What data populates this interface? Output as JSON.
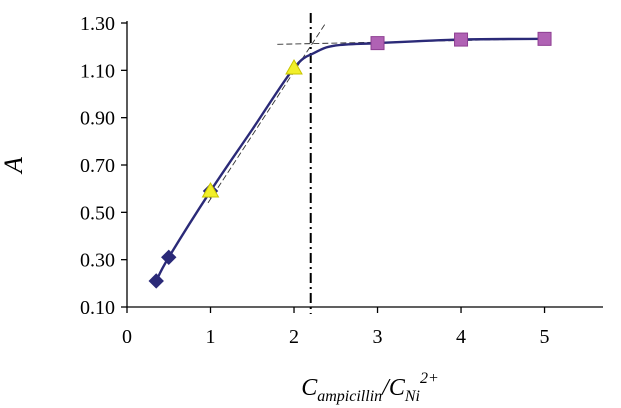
{
  "chart_data": {
    "type": "scatter",
    "title": "",
    "ylabel": "A",
    "xlabel": {
      "main": "C",
      "sub1": "ampicillin",
      "slash": "/",
      "main2": "C",
      "sub2": "Ni",
      "sup2": "2+"
    },
    "xlim": [
      0,
      5.7
    ],
    "ylim": [
      0.1,
      1.3
    ],
    "x_ticks": [
      0,
      1,
      2,
      3,
      4,
      5
    ],
    "x_tick_labels": [
      "0",
      "1",
      "2",
      "3",
      "4",
      "5"
    ],
    "y_ticks": [
      0.1,
      0.3,
      0.5,
      0.7,
      0.9,
      1.1,
      1.3
    ],
    "y_tick_labels": [
      "0.10",
      "0.30",
      "0.50",
      "0.70",
      "0.90",
      "1.10",
      "1.30"
    ],
    "grid": false,
    "series": [
      {
        "marker": "diamond",
        "color": "#2b2a78",
        "x": [
          0.35,
          0.5,
          1.0
        ],
        "y": [
          0.21,
          0.31,
          0.59
        ]
      },
      {
        "marker": "triangle",
        "color": "#f2ef2a",
        "x": [
          1.0,
          2.0
        ],
        "y": [
          0.59,
          1.11
        ]
      },
      {
        "marker": "square",
        "color": "#b062b4",
        "x": [
          3.0,
          4.0,
          5.0
        ],
        "y": [
          1.215,
          1.23,
          1.233
        ]
      }
    ],
    "fit_curve": {
      "color": "#2b2a78",
      "x": [
        0.35,
        0.5,
        1.0,
        1.5,
        2.0,
        2.25,
        2.5,
        3.0,
        4.0,
        5.0
      ],
      "y": [
        0.21,
        0.31,
        0.59,
        0.85,
        1.11,
        1.175,
        1.205,
        1.215,
        1.23,
        1.233
      ]
    },
    "tangent_lines": [
      {
        "x": [
          0.97,
          2.38
        ],
        "y": [
          0.54,
          1.3
        ]
      },
      {
        "x": [
          1.8,
          4.95
        ],
        "y": [
          1.21,
          1.233
        ]
      }
    ],
    "vertical_line": {
      "x": 2.2
    }
  }
}
